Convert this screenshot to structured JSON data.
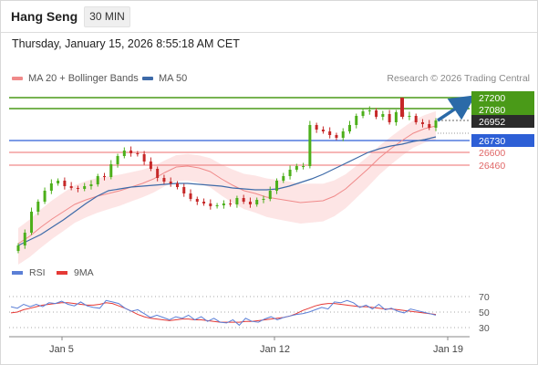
{
  "header": {
    "instrument": "Hang Seng",
    "timeframe": "30 MIN",
    "timestamp": "Thursday, January 15, 2026 8:55:18 AM CET"
  },
  "legend": {
    "ma20_label": "MA 20 + Bollinger Bands",
    "ma50_label": "MA 50",
    "copyright": "Research © 2026 Trading Central",
    "rsi_label": "RSI",
    "ma9_label": "9MA"
  },
  "levels": {
    "resistance_2": "27200",
    "resistance_1": "27080",
    "last_price": "26952",
    "pivot": "26730",
    "support_1": "26600",
    "support_2": "26460"
  },
  "rsi_axis": {
    "upper": "70",
    "middle": "50",
    "lower": "30"
  },
  "x_axis": {
    "labels": [
      "Jan 5",
      "Jan 12",
      "Jan 19"
    ]
  },
  "colors": {
    "resistance": "#4a9a18",
    "pivot": "#2d5fd6",
    "support": "#f08a8a",
    "last_price_bg": "#2b2b2b",
    "bullish_candle": "#4caf1a",
    "bearish_candle": "#c62828",
    "ma20": "#f08a8a",
    "ma50": "#3d6aa8",
    "bollinger_fill": "#fde0e0",
    "rsi_line": "#5b7fd6",
    "ma9_line": "#e53935",
    "arrow": "#2b6aa8"
  },
  "chart_data": {
    "type": "candlestick",
    "title": "Hang Seng",
    "interval": "30 MIN",
    "price_levels": [
      {
        "kind": "resistance",
        "value": 27200
      },
      {
        "kind": "resistance",
        "value": 27080
      },
      {
        "kind": "last_price",
        "value": 26952
      },
      {
        "kind": "pivot",
        "value": 26730
      },
      {
        "kind": "support",
        "value": 26600
      },
      {
        "kind": "support",
        "value": 26460
      }
    ],
    "x_ticks": [
      "Jan 5",
      "Jan 12",
      "Jan 19"
    ],
    "rsi_levels": [
      70,
      50,
      30
    ],
    "closes": [
      25580,
      25720,
      25950,
      26060,
      26180,
      26260,
      26290,
      26230,
      26210,
      26200,
      26230,
      26250,
      26340,
      26330,
      26470,
      26560,
      26620,
      26590,
      26580,
      26500,
      26420,
      26320,
      26280,
      26260,
      26220,
      26150,
      26090,
      26060,
      26040,
      26010,
      26020,
      26040,
      26030,
      26100,
      26060,
      26030,
      26080,
      26090,
      26180,
      26290,
      26340,
      26410,
      26450,
      26450,
      26900,
      26850,
      26830,
      26790,
      26760,
      26830,
      26900,
      27000,
      27050,
      27060,
      26990,
      27020,
      26930,
      27040,
      26990,
      27000,
      26930,
      26910,
      26870,
      26950
    ],
    "ma20": [
      25600,
      25680,
      25780,
      25870,
      25950,
      26030,
      26080,
      26120,
      26150,
      26180,
      26220,
      26260,
      26310,
      26380,
      26440,
      26450,
      26430,
      26390,
      26310,
      26240,
      26180,
      26150,
      26110,
      26090,
      26070,
      26050,
      26060,
      26070,
      26120,
      26200,
      26310,
      26420,
      26540,
      26640,
      26730,
      26810,
      26860,
      26890
    ],
    "ma50": [
      25580,
      25640,
      25700,
      25780,
      25860,
      25950,
      26040,
      26120,
      26180,
      26200,
      26220,
      26230,
      26240,
      26250,
      26260,
      26260,
      26250,
      26240,
      26230,
      26210,
      26200,
      26190,
      26190,
      26200,
      26230,
      26270,
      26310,
      26360,
      26420,
      26480,
      26540,
      26600,
      26640,
      26670,
      26690,
      26720,
      26740,
      26770
    ],
    "rsi": [
      57,
      55,
      60,
      57,
      60,
      57,
      62,
      61,
      64,
      60,
      58,
      63,
      58,
      56,
      55,
      65,
      63,
      61,
      55,
      51,
      53,
      48,
      43,
      46,
      43,
      40,
      44,
      42,
      46,
      40,
      44,
      38,
      42,
      37,
      36,
      40,
      33,
      42,
      38,
      37,
      41,
      44,
      40,
      43,
      45,
      47,
      48,
      50,
      53,
      56,
      54,
      63,
      62,
      65,
      62,
      56,
      59,
      54,
      60,
      53,
      55,
      51,
      49,
      54,
      52,
      50,
      48,
      46
    ],
    "ma9": [
      49,
      50,
      53,
      55,
      57,
      59,
      60,
      61,
      62,
      62,
      61,
      60,
      59,
      59,
      60,
      62,
      61,
      58,
      55,
      51,
      47,
      44,
      42,
      41,
      40,
      39,
      40,
      41,
      41,
      40,
      40,
      39,
      38,
      37,
      37,
      37,
      37,
      38,
      38,
      39,
      40,
      41,
      42,
      43,
      45,
      48,
      52,
      55,
      58,
      60,
      61,
      61,
      60,
      59,
      58,
      57,
      57,
      56,
      55,
      54,
      54,
      53,
      52,
      51,
      50,
      49,
      48,
      47
    ]
  }
}
